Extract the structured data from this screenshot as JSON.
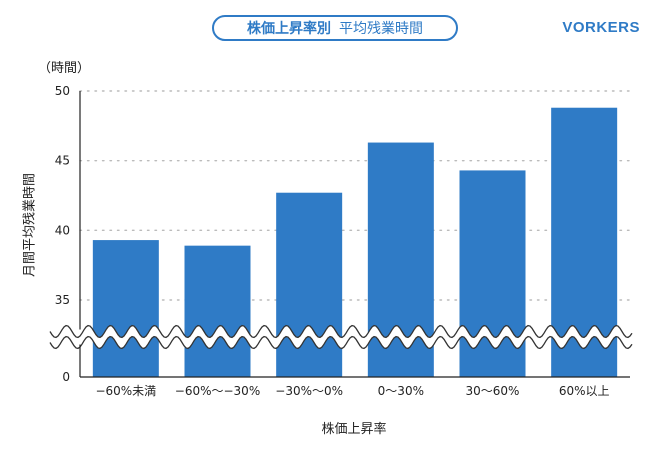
{
  "title": {
    "main": "株価上昇率別",
    "sub": "平均残業時間"
  },
  "brand": "VORKERS",
  "colors": {
    "bar": "#2f7bc6",
    "accent": "#2f7bc6",
    "grid": "#bbbbbb"
  },
  "chart_data": {
    "type": "bar",
    "title": "株価上昇率別 平均残業時間",
    "xlabel": "株価上昇率",
    "ylabel": "月間平均残業時間",
    "unit": "（時間）",
    "categories": [
      "−60%未満",
      "−60%〜−30%",
      "−30%〜0%",
      "0〜30%",
      "30〜60%",
      "60%以上"
    ],
    "values": [
      39.3,
      38.9,
      42.7,
      46.3,
      44.3,
      48.8
    ],
    "ylim": [
      0,
      50
    ],
    "axis_break": [
      0,
      35
    ],
    "yticks": [
      0,
      35,
      40,
      45,
      50
    ],
    "grid": true
  }
}
